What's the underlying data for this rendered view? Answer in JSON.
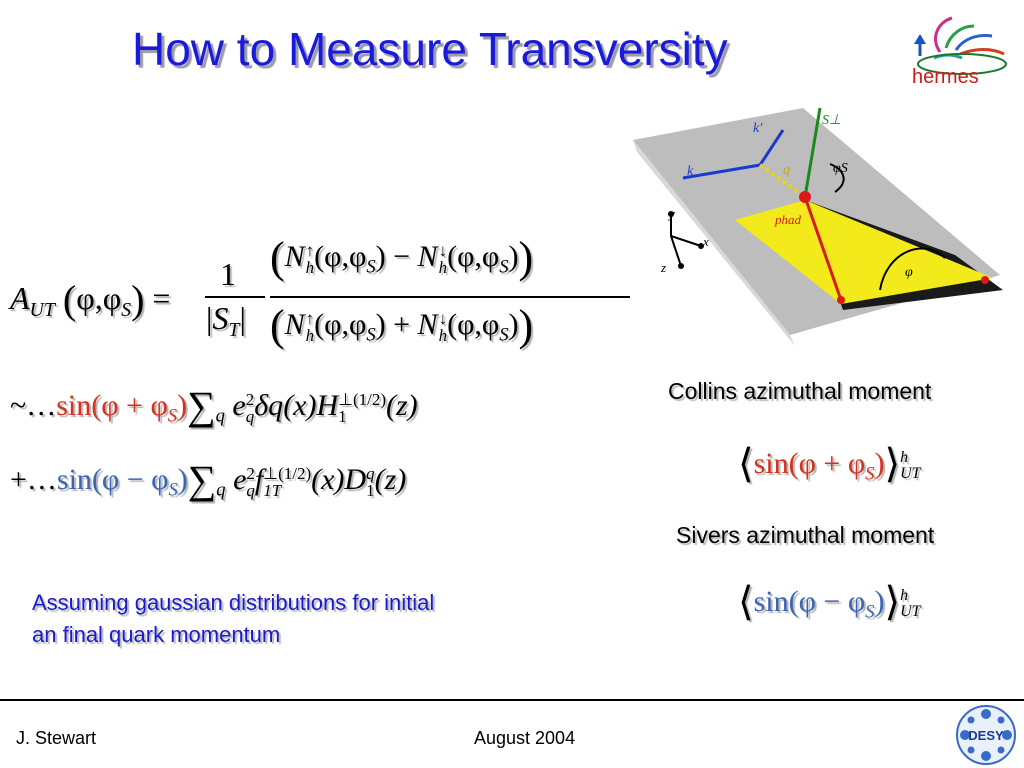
{
  "slide": {
    "title": "How to Measure Transversity",
    "logo_text": "hermes",
    "footer_left": "J. Stewart",
    "footer_center": "August  2004",
    "desy_logo_text": "DESY"
  },
  "formula": {
    "A": "A",
    "UT": "UT",
    "phi": "φ",
    "S": "S",
    "T": "T",
    "one": "1",
    "N": "N",
    "h": "h",
    "up": "↑",
    "down": "↓",
    "tilde_dots": "~…",
    "plus_dots": "+…",
    "sin_plus": "sin(φ + φ",
    "sin_minus": "sin(φ − φ",
    "sum": "∑",
    "q": "q",
    "e": "e",
    "two": "2",
    "delta_q": "δq",
    "x": "(x)",
    "H": "H",
    "perp_half": "⊥(1/2)",
    "z": "(z)",
    "f": "f",
    "oneT": "1T",
    "D": "D"
  },
  "labels": {
    "collins": "Collins azimuthal moment",
    "sivers": "Sivers azimuthal moment",
    "assumption_line1": "Assuming gaussian distributions for initial",
    "assumption_line2": "an final quark momentum"
  },
  "moments": {
    "sin_plus": "sin(φ + φ",
    "sin_minus": "sin(φ − φ",
    "S": "S",
    "close": ")",
    "h": "h",
    "UT": "UT"
  },
  "diagram": {
    "k_prime": "k′",
    "k": "k",
    "q": "q",
    "S_perp": "S⊥",
    "phi_S": "φS",
    "p_had": "phad",
    "phi": "φ",
    "y": "y",
    "x": "x",
    "z": "z"
  },
  "colors": {
    "title": "#1a1adb",
    "red_term": "#d2321e",
    "blue_term": "#3a64b4"
  }
}
